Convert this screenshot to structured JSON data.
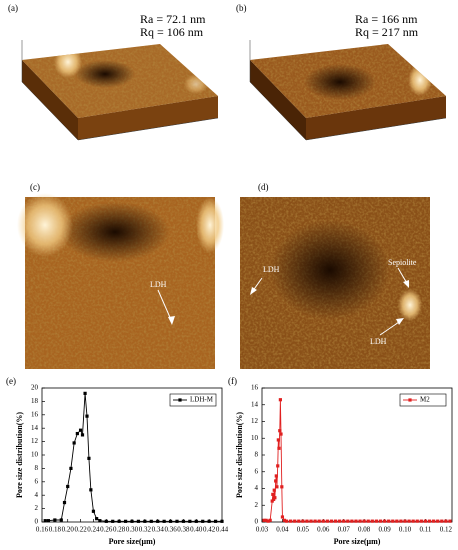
{
  "afm": [
    {
      "label": "(a)",
      "roughness": [
        "Ra = 72.1 nm",
        "Rq = 106 nm"
      ]
    },
    {
      "label": "(b)",
      "roughness": [
        "Ra = 166 nm",
        "Rq = 217 nm"
      ]
    },
    {
      "label": "(c)",
      "annotations": [
        "LDH"
      ]
    },
    {
      "label": "(d)",
      "annotations": [
        "LDH",
        "Sepiolite",
        "LDH"
      ]
    }
  ],
  "chart_data": [
    {
      "type": "line",
      "panel_label": "(e)",
      "xlabel": "Pore size(μm)",
      "ylabel": "Pore size distribution(%)",
      "legend": "upper right",
      "x": [
        0.165,
        0.17,
        0.18,
        0.19,
        0.195,
        0.2,
        0.205,
        0.21,
        0.215,
        0.22,
        0.223,
        0.227,
        0.23,
        0.233,
        0.236,
        0.24,
        0.245,
        0.25,
        0.26,
        0.27,
        0.28,
        0.29,
        0.3,
        0.31,
        0.32,
        0.33,
        0.34,
        0.35,
        0.36,
        0.37,
        0.38,
        0.39,
        0.4,
        0.41,
        0.42,
        0.43,
        0.44
      ],
      "series": [
        {
          "name": "LDH-M",
          "color": "#000000",
          "values": [
            0.2,
            0.2,
            0.3,
            0.3,
            2.9,
            5.3,
            8,
            11.8,
            13.2,
            13.7,
            13,
            19.2,
            15.8,
            9.5,
            4.8,
            1.6,
            0.5,
            0.2,
            0.1,
            0.1,
            0.1,
            0.1,
            0.1,
            0.1,
            0.1,
            0.1,
            0.1,
            0.1,
            0.1,
            0.1,
            0.1,
            0.1,
            0.1,
            0.1,
            0.1,
            0.1,
            0.1
          ]
        }
      ],
      "xlim": [
        0.16,
        0.44
      ],
      "xticks": [
        0.16,
        0.18,
        {
          "value": 0.2,
          "label": "0.20"
        },
        0.22,
        0.24,
        0.26,
        0.28,
        {
          "value": 0.3,
          "label": "0.30"
        },
        0.32,
        0.34,
        0.36,
        0.38,
        {
          "value": 0.4,
          "label": "0.40"
        },
        0.42,
        0.44
      ],
      "ylim": [
        0,
        20
      ],
      "yticks": [
        0,
        2,
        4,
        6,
        8,
        10,
        12,
        14,
        16,
        18,
        20
      ]
    },
    {
      "type": "line",
      "panel_label": "(f)",
      "xlabel": "Pore size(μm)",
      "ylabel": "Pore size distribution(%)",
      "legend": "upper right",
      "x": [
        0.031,
        0.032,
        0.033,
        0.034,
        0.035,
        0.0353,
        0.0357,
        0.036,
        0.0363,
        0.0367,
        0.037,
        0.0373,
        0.0377,
        0.038,
        0.0383,
        0.0387,
        0.039,
        0.0393,
        0.0397,
        0.04,
        0.041,
        0.042,
        0.044,
        0.046,
        0.048,
        0.05,
        0.052,
        0.054,
        0.056,
        0.058,
        0.06,
        0.062,
        0.064,
        0.066,
        0.068,
        0.07,
        0.072,
        0.074,
        0.076,
        0.078,
        0.08,
        0.082,
        0.084,
        0.086,
        0.088,
        0.09,
        0.092,
        0.094,
        0.096,
        0.098,
        0.1,
        0.102,
        0.104,
        0.106,
        0.108,
        0.11,
        0.112,
        0.114,
        0.116,
        0.118,
        0.12,
        0.122
      ],
      "series": [
        {
          "name": "M2",
          "color": "#e02020",
          "values": [
            0.2,
            0.2,
            0.1,
            0.2,
            2.5,
            3.3,
            2.7,
            3.8,
            2.9,
            4.9,
            5.5,
            4.2,
            6.7,
            9.8,
            8.8,
            10.9,
            14.6,
            10.5,
            4.2,
            0.6,
            0.2,
            0.1,
            0.1,
            0.1,
            0.1,
            0.1,
            0.1,
            0.1,
            0.1,
            0.1,
            0.1,
            0.1,
            0.1,
            0.1,
            0.1,
            0.1,
            0.1,
            0.1,
            0.1,
            0.1,
            0.1,
            0.1,
            0.1,
            0.1,
            0.1,
            0.1,
            0.1,
            0.1,
            0.1,
            0.1,
            0.1,
            0.1,
            0.1,
            0.1,
            0.1,
            0.1,
            0.1,
            0.1,
            0.1,
            0.1,
            0.1,
            0.1
          ]
        }
      ],
      "xlim": [
        0.03,
        0.123
      ],
      "xticks": [
        0.03,
        0.04,
        0.05,
        0.06,
        0.07,
        0.08,
        0.09,
        {
          "value": 0.1,
          "label": "0.10"
        },
        0.11,
        0.12
      ],
      "ylim": [
        0,
        16
      ],
      "yticks": [
        0,
        2,
        4,
        6,
        8,
        10,
        12,
        14,
        16
      ]
    }
  ]
}
